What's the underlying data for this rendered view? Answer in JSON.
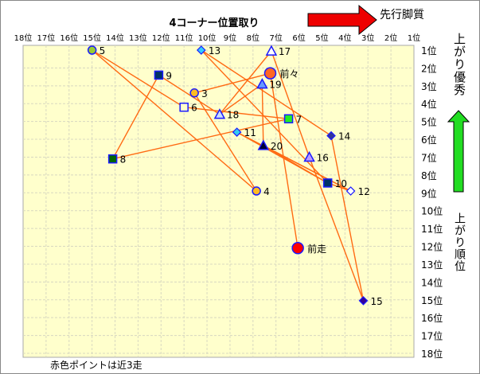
{
  "chart_data": {
    "type": "scatter",
    "title": "4コーナー位置取り",
    "x_axis": {
      "label": "先行脚質",
      "range": [
        18,
        1
      ],
      "reversed": true,
      "tick_labels": [
        "18位",
        "17位",
        "16位",
        "15位",
        "14位",
        "13位",
        "12位",
        "11位",
        "10位",
        "9位",
        "8位",
        "7位",
        "6位",
        "5位",
        "4位",
        "3位",
        "2位",
        "1位"
      ]
    },
    "y_axis": {
      "label_top": "上がり優秀",
      "label_bottom": "上がり順位",
      "range": [
        1,
        18
      ],
      "tick_labels": [
        "1位",
        "2位",
        "3位",
        "4位",
        "5位",
        "6位",
        "7位",
        "8位",
        "9位",
        "10位",
        "11位",
        "12位",
        "13位",
        "14位",
        "15位",
        "16位",
        "17位",
        "18位"
      ]
    },
    "grid": true,
    "note": "赤色ポイントは近3走",
    "colors": {
      "plot_bg": "#ffffcc",
      "grid": "#d8d8c0",
      "line": "#ff6a13",
      "marker_edge": "#1a1aff",
      "arrow_right": "#ee0000",
      "arrow_up": "#22dd22"
    },
    "points": [
      {
        "label": "5",
        "x": 15.0,
        "y": 1.0,
        "shape": "circle",
        "fill": "#99cc33"
      },
      {
        "label": "13",
        "x": 10.25,
        "y": 1.0,
        "shape": "diamond",
        "fill": "#33ccff"
      },
      {
        "label": "17",
        "x": 7.2,
        "y": 1.05,
        "shape": "triangle",
        "fill": "#ffffff"
      },
      {
        "label": "前々",
        "x": 7.25,
        "y": 2.3,
        "shape": "circle-big",
        "fill": "#ff6622"
      },
      {
        "label": "9",
        "x": 12.1,
        "y": 2.4,
        "shape": "square",
        "fill": "#003366"
      },
      {
        "label": "19",
        "x": 7.6,
        "y": 2.9,
        "shape": "triangle",
        "fill": "#6699ff"
      },
      {
        "label": "3",
        "x": 10.55,
        "y": 3.4,
        "shape": "circle",
        "fill": "#ffbb22"
      },
      {
        "label": "6",
        "x": 11.0,
        "y": 4.2,
        "shape": "square",
        "fill": "#ffffcc"
      },
      {
        "label": "18",
        "x": 9.45,
        "y": 4.6,
        "shape": "triangle",
        "fill": "#ccddff"
      },
      {
        "label": "7",
        "x": 6.45,
        "y": 4.85,
        "shape": "square",
        "fill": "#22ee22"
      },
      {
        "label": "11",
        "x": 8.7,
        "y": 5.6,
        "shape": "diamond",
        "fill": "#33ccee"
      },
      {
        "label": "14",
        "x": 4.6,
        "y": 5.8,
        "shape": "diamond",
        "fill": "#333399"
      },
      {
        "label": "20",
        "x": 7.55,
        "y": 6.35,
        "shape": "triangle",
        "fill": "#000033"
      },
      {
        "label": "8",
        "x": 14.1,
        "y": 7.1,
        "shape": "square",
        "fill": "#006600"
      },
      {
        "label": "16",
        "x": 5.55,
        "y": 7.0,
        "shape": "triangle",
        "fill": "#bb99ff"
      },
      {
        "label": "10",
        "x": 4.75,
        "y": 8.45,
        "shape": "square",
        "fill": "#003366"
      },
      {
        "label": "4",
        "x": 7.85,
        "y": 8.9,
        "shape": "circle",
        "fill": "#ffbb22"
      },
      {
        "label": "12",
        "x": 3.75,
        "y": 8.9,
        "shape": "diamond",
        "fill": "#ffffff"
      },
      {
        "label": "前走",
        "x": 6.05,
        "y": 12.1,
        "shape": "circle-big",
        "fill": "#ff0000"
      },
      {
        "label": "15",
        "x": 3.2,
        "y": 15.05,
        "shape": "diamond",
        "fill": "#330099"
      }
    ],
    "connections": [
      [
        "5",
        "4"
      ],
      [
        "5",
        "6"
      ],
      [
        "9",
        "8"
      ],
      [
        "9",
        "18"
      ],
      [
        "3",
        "前々"
      ],
      [
        "3",
        "4"
      ],
      [
        "6",
        "7"
      ],
      [
        "18",
        "17"
      ],
      [
        "18",
        "19"
      ],
      [
        "8",
        "7"
      ],
      [
        "13",
        "10"
      ],
      [
        "13",
        "14"
      ],
      [
        "17",
        "16"
      ],
      [
        "前々",
        "前走"
      ],
      [
        "19",
        "20"
      ],
      [
        "11",
        "10"
      ],
      [
        "20",
        "10"
      ],
      [
        "20",
        "12"
      ],
      [
        "11",
        "12"
      ],
      [
        "14",
        "15"
      ],
      [
        "16",
        "15"
      ],
      [
        "10",
        "12"
      ]
    ]
  }
}
